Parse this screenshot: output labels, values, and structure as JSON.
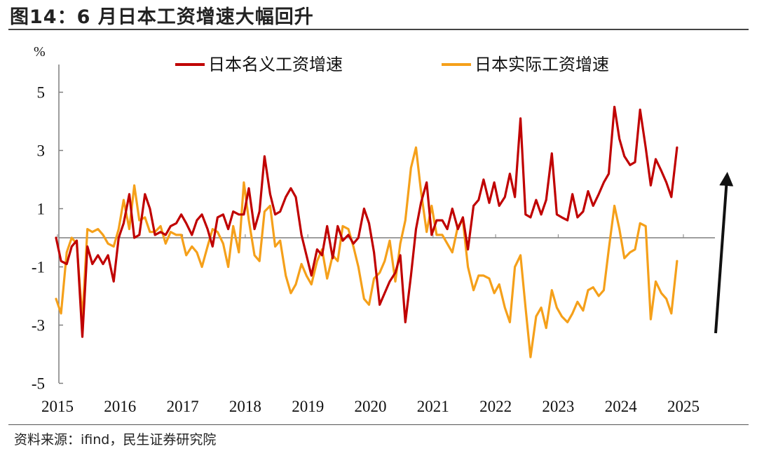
{
  "header": {
    "title": "图14：6 月日本工资增速大幅回升"
  },
  "footer": {
    "source": "资料来源：ifind，民生证券研究院"
  },
  "colors": {
    "nominal": "#C00000",
    "real": "#F5A01A",
    "arrow": "#111111",
    "axis": "#7F7F7F"
  },
  "chart_data": {
    "type": "line",
    "ylabel": "%",
    "ylim": [
      -5,
      6
    ],
    "yticks": [
      5,
      3,
      1,
      -1,
      -3,
      -5
    ],
    "xlim": [
      2015,
      2025.75
    ],
    "xticks": [
      "2015",
      "2016",
      "2017",
      "2018",
      "2019",
      "2020",
      "2021",
      "2022",
      "2023",
      "2024",
      "2025"
    ],
    "legend_position": "top",
    "annotation": "upward arrow at end of series",
    "series": [
      {
        "name": "日本名义工资增速",
        "color": "#C00000",
        "points": [
          [
            2015.0,
            0.0
          ],
          [
            2015.08,
            -0.8
          ],
          [
            2015.17,
            -0.9
          ],
          [
            2015.25,
            -0.3
          ],
          [
            2015.33,
            -0.1
          ],
          [
            2015.42,
            -3.4
          ],
          [
            2015.5,
            -0.3
          ],
          [
            2015.58,
            -0.9
          ],
          [
            2015.67,
            -0.6
          ],
          [
            2015.75,
            -0.9
          ],
          [
            2015.83,
            -0.6
          ],
          [
            2015.92,
            -1.5
          ],
          [
            2016.0,
            0.0
          ],
          [
            2016.08,
            0.5
          ],
          [
            2016.17,
            1.5
          ],
          [
            2016.25,
            0.0
          ],
          [
            2016.33,
            0.1
          ],
          [
            2016.42,
            1.5
          ],
          [
            2016.5,
            1.0
          ],
          [
            2016.58,
            0.1
          ],
          [
            2016.67,
            0.2
          ],
          [
            2016.75,
            0.1
          ],
          [
            2016.83,
            0.4
          ],
          [
            2016.92,
            0.5
          ],
          [
            2017.0,
            0.8
          ],
          [
            2017.08,
            0.5
          ],
          [
            2017.17,
            0.1
          ],
          [
            2017.25,
            0.6
          ],
          [
            2017.33,
            0.8
          ],
          [
            2017.42,
            0.3
          ],
          [
            2017.5,
            -0.3
          ],
          [
            2017.58,
            0.7
          ],
          [
            2017.67,
            0.8
          ],
          [
            2017.75,
            0.3
          ],
          [
            2017.83,
            0.9
          ],
          [
            2017.92,
            0.8
          ],
          [
            2018.0,
            0.8
          ],
          [
            2018.08,
            1.7
          ],
          [
            2018.17,
            0.3
          ],
          [
            2018.25,
            0.9
          ],
          [
            2018.33,
            2.8
          ],
          [
            2018.42,
            1.5
          ],
          [
            2018.5,
            0.8
          ],
          [
            2018.58,
            0.9
          ],
          [
            2018.67,
            1.4
          ],
          [
            2018.75,
            1.7
          ],
          [
            2018.83,
            1.4
          ],
          [
            2018.92,
            0.1
          ],
          [
            2019.0,
            -0.6
          ],
          [
            2019.08,
            -1.3
          ],
          [
            2019.17,
            -0.4
          ],
          [
            2019.25,
            -0.6
          ],
          [
            2019.33,
            0.4
          ],
          [
            2019.42,
            -0.7
          ],
          [
            2019.5,
            0.4
          ],
          [
            2019.58,
            -0.1
          ],
          [
            2019.67,
            0.1
          ],
          [
            2019.75,
            -0.2
          ],
          [
            2019.83,
            0.0
          ],
          [
            2019.92,
            1.0
          ],
          [
            2020.0,
            0.5
          ],
          [
            2020.08,
            -0.5
          ],
          [
            2020.17,
            -2.3
          ],
          [
            2020.25,
            -1.9
          ],
          [
            2020.33,
            -1.5
          ],
          [
            2020.42,
            -1.2
          ],
          [
            2020.5,
            -0.6
          ],
          [
            2020.58,
            -2.9
          ],
          [
            2020.67,
            -1.3
          ],
          [
            2020.75,
            0.3
          ],
          [
            2020.83,
            1.2
          ],
          [
            2020.92,
            1.9
          ],
          [
            2021.0,
            0.1
          ],
          [
            2021.08,
            0.6
          ],
          [
            2021.17,
            0.6
          ],
          [
            2021.25,
            0.3
          ],
          [
            2021.33,
            1.0
          ],
          [
            2021.42,
            0.3
          ],
          [
            2021.5,
            0.7
          ],
          [
            2021.58,
            -0.4
          ],
          [
            2021.67,
            1.1
          ],
          [
            2021.75,
            1.3
          ],
          [
            2021.83,
            2.0
          ],
          [
            2021.92,
            1.2
          ],
          [
            2022.0,
            1.9
          ],
          [
            2022.08,
            1.1
          ],
          [
            2022.17,
            1.4
          ],
          [
            2022.25,
            2.2
          ],
          [
            2022.33,
            1.4
          ],
          [
            2022.42,
            4.1
          ],
          [
            2022.5,
            0.8
          ],
          [
            2022.58,
            0.7
          ],
          [
            2022.67,
            1.3
          ],
          [
            2022.75,
            0.8
          ],
          [
            2022.83,
            1.3
          ],
          [
            2022.92,
            2.9
          ],
          [
            2023.0,
            0.8
          ],
          [
            2023.08,
            0.7
          ],
          [
            2023.17,
            0.6
          ],
          [
            2023.25,
            1.5
          ],
          [
            2023.33,
            0.7
          ],
          [
            2023.42,
            0.9
          ],
          [
            2023.5,
            1.6
          ],
          [
            2023.58,
            1.1
          ],
          [
            2023.67,
            1.5
          ],
          [
            2023.75,
            1.9
          ],
          [
            2023.83,
            2.2
          ],
          [
            2023.92,
            4.5
          ],
          [
            2024.0,
            3.4
          ],
          [
            2024.08,
            2.8
          ],
          [
            2024.17,
            2.5
          ],
          [
            2024.25,
            2.6
          ],
          [
            2024.33,
            4.4
          ],
          [
            2024.42,
            3.1
          ],
          [
            2024.5,
            1.8
          ],
          [
            2024.58,
            2.7
          ],
          [
            2024.67,
            2.3
          ],
          [
            2024.75,
            1.9
          ],
          [
            2024.83,
            1.4
          ],
          [
            2024.92,
            3.1
          ]
        ]
      },
      {
        "name": "日本实际工资增速",
        "color": "#F5A01A",
        "points": [
          [
            2015.0,
            -2.1
          ],
          [
            2015.08,
            -2.6
          ],
          [
            2015.17,
            -0.5
          ],
          [
            2015.25,
            0.0
          ],
          [
            2015.33,
            -0.2
          ],
          [
            2015.42,
            -2.8
          ],
          [
            2015.5,
            0.3
          ],
          [
            2015.58,
            0.2
          ],
          [
            2015.67,
            0.3
          ],
          [
            2015.75,
            0.1
          ],
          [
            2015.83,
            -0.2
          ],
          [
            2015.92,
            -0.3
          ],
          [
            2016.0,
            0.3
          ],
          [
            2016.08,
            1.3
          ],
          [
            2016.17,
            0.3
          ],
          [
            2016.25,
            1.8
          ],
          [
            2016.33,
            0.6
          ],
          [
            2016.42,
            0.7
          ],
          [
            2016.5,
            0.2
          ],
          [
            2016.58,
            0.2
          ],
          [
            2016.67,
            0.4
          ],
          [
            2016.75,
            -0.2
          ],
          [
            2016.83,
            0.2
          ],
          [
            2016.92,
            0.1
          ],
          [
            2017.0,
            0.1
          ],
          [
            2017.08,
            -0.6
          ],
          [
            2017.17,
            -0.3
          ],
          [
            2017.25,
            -0.5
          ],
          [
            2017.33,
            -1.0
          ],
          [
            2017.42,
            -0.3
          ],
          [
            2017.5,
            0.3
          ],
          [
            2017.58,
            0.2
          ],
          [
            2017.67,
            -0.2
          ],
          [
            2017.75,
            -1.0
          ],
          [
            2017.83,
            0.4
          ],
          [
            2017.92,
            -0.5
          ],
          [
            2018.0,
            1.9
          ],
          [
            2018.08,
            0.6
          ],
          [
            2018.17,
            -0.6
          ],
          [
            2018.25,
            -0.8
          ],
          [
            2018.33,
            0.9
          ],
          [
            2018.42,
            1.1
          ],
          [
            2018.5,
            -0.3
          ],
          [
            2018.58,
            -0.1
          ],
          [
            2018.67,
            -1.3
          ],
          [
            2018.75,
            -1.9
          ],
          [
            2018.83,
            -1.6
          ],
          [
            2018.92,
            -0.9
          ],
          [
            2019.0,
            -1.3
          ],
          [
            2019.08,
            -1.6
          ],
          [
            2019.17,
            -0.8
          ],
          [
            2019.25,
            -0.4
          ],
          [
            2019.33,
            -1.4
          ],
          [
            2019.42,
            -0.6
          ],
          [
            2019.5,
            -0.8
          ],
          [
            2019.58,
            0.4
          ],
          [
            2019.67,
            0.3
          ],
          [
            2019.75,
            -0.3
          ],
          [
            2019.83,
            -1.0
          ],
          [
            2019.92,
            -2.1
          ],
          [
            2020.0,
            -2.3
          ],
          [
            2020.08,
            -1.4
          ],
          [
            2020.17,
            -1.2
          ],
          [
            2020.25,
            -0.8
          ],
          [
            2020.33,
            -0.1
          ],
          [
            2020.42,
            -1.5
          ],
          [
            2020.5,
            -0.2
          ],
          [
            2020.58,
            0.6
          ],
          [
            2020.67,
            2.4
          ],
          [
            2020.75,
            3.1
          ],
          [
            2020.83,
            1.6
          ],
          [
            2020.92,
            0.2
          ],
          [
            2021.0,
            1.1
          ],
          [
            2021.08,
            0.1
          ],
          [
            2021.17,
            0.1
          ],
          [
            2021.25,
            -0.2
          ],
          [
            2021.33,
            -0.5
          ],
          [
            2021.42,
            0.4
          ],
          [
            2021.5,
            0.6
          ],
          [
            2021.58,
            -1.0
          ],
          [
            2021.67,
            -1.8
          ],
          [
            2021.75,
            -1.3
          ],
          [
            2021.83,
            -1.3
          ],
          [
            2021.92,
            -1.4
          ],
          [
            2022.0,
            -1.9
          ],
          [
            2022.08,
            -1.6
          ],
          [
            2022.17,
            -2.4
          ],
          [
            2022.25,
            -2.9
          ],
          [
            2022.33,
            -1.0
          ],
          [
            2022.42,
            -0.6
          ],
          [
            2022.5,
            -2.4
          ],
          [
            2022.58,
            -4.1
          ],
          [
            2022.67,
            -2.7
          ],
          [
            2022.75,
            -2.4
          ],
          [
            2022.83,
            -3.1
          ],
          [
            2022.92,
            -1.8
          ],
          [
            2023.0,
            -2.4
          ],
          [
            2023.08,
            -2.7
          ],
          [
            2023.17,
            -2.9
          ],
          [
            2023.25,
            -2.6
          ],
          [
            2023.33,
            -2.2
          ],
          [
            2023.42,
            -2.5
          ],
          [
            2023.5,
            -1.8
          ],
          [
            2023.58,
            -1.7
          ],
          [
            2023.67,
            -2.0
          ],
          [
            2023.75,
            -1.8
          ],
          [
            2023.83,
            -0.4
          ],
          [
            2023.92,
            1.1
          ],
          [
            2024.0,
            0.3
          ],
          [
            2024.08,
            -0.7
          ],
          [
            2024.17,
            -0.5
          ],
          [
            2024.25,
            -0.4
          ],
          [
            2024.33,
            0.5
          ],
          [
            2024.42,
            0.4
          ],
          [
            2024.5,
            -2.8
          ],
          [
            2024.58,
            -1.5
          ],
          [
            2024.67,
            -1.9
          ],
          [
            2024.75,
            -2.1
          ],
          [
            2024.83,
            -2.6
          ],
          [
            2024.92,
            -0.8
          ]
        ]
      }
    ]
  }
}
